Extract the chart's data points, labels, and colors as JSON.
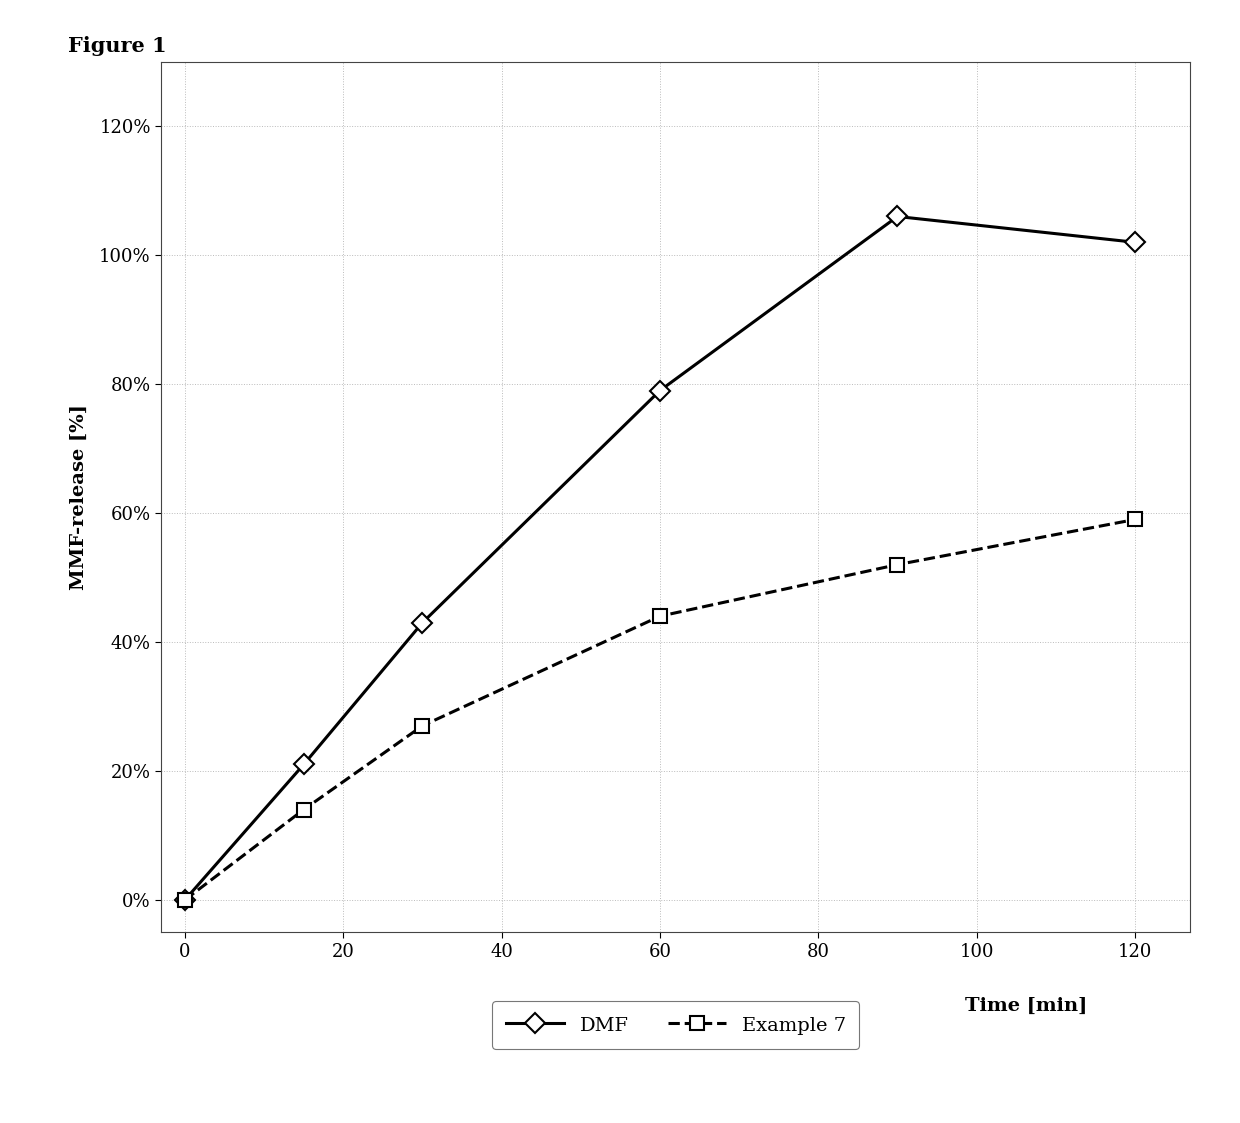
{
  "title": "Figure 1",
  "xlabel": "Time [min]",
  "ylabel": "MMF-release [%]",
  "dmf_x": [
    0,
    15,
    30,
    60,
    90,
    120
  ],
  "dmf_y": [
    0,
    21,
    43,
    79,
    106,
    102
  ],
  "ex7_x": [
    0,
    15,
    30,
    60,
    90,
    120
  ],
  "ex7_y": [
    0,
    14,
    27,
    44,
    52,
    59
  ],
  "xlim": [
    -3,
    127
  ],
  "ylim": [
    -5,
    130
  ],
  "xticks": [
    0,
    20,
    40,
    60,
    80,
    100,
    120
  ],
  "yticks": [
    0,
    20,
    40,
    60,
    80,
    100,
    120
  ],
  "ytick_labels": [
    "0%",
    "20%",
    "40%",
    "60%",
    "80%",
    "100%",
    "120%"
  ],
  "dmf_color": "#000000",
  "ex7_color": "#000000",
  "line_width": 2.2,
  "bg_color": "#ffffff",
  "fig_bg_color": "#ffffff",
  "legend_dmf": "DMF",
  "legend_ex7": "Example 7",
  "title_fontsize": 15,
  "label_fontsize": 14,
  "tick_fontsize": 13,
  "legend_fontsize": 14
}
